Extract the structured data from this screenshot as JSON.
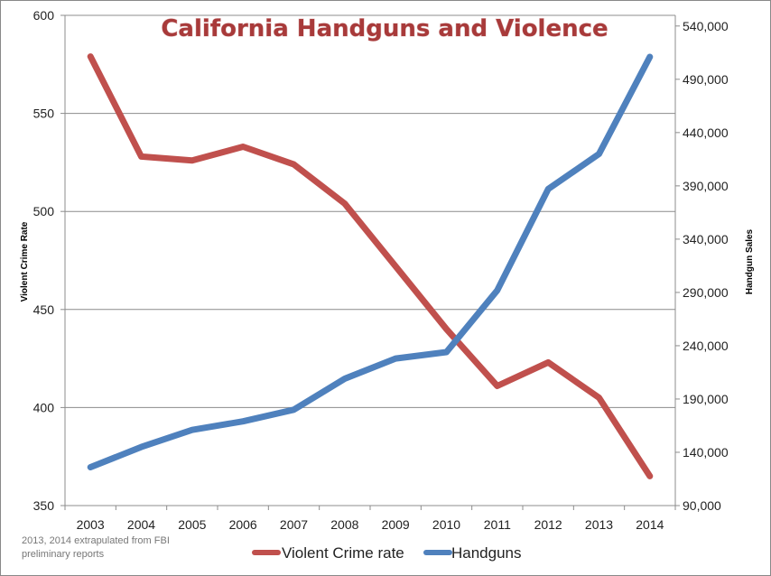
{
  "chart_data": {
    "type": "line",
    "title": "California Handguns and Violence",
    "ylabel": "Violent Crime Rate",
    "y2label": "Handgun Sales",
    "categories": [
      "2003",
      "2004",
      "2005",
      "2006",
      "2007",
      "2008",
      "2009",
      "2010",
      "2011",
      "2012",
      "2013",
      "2014"
    ],
    "ylim": [
      350,
      600
    ],
    "y2lim": [
      90000,
      550000
    ],
    "yticks": [
      "350",
      "400",
      "450",
      "500",
      "550",
      "600"
    ],
    "y2ticks": [
      "90,000",
      "140,000",
      "190,000",
      "240,000",
      "290,000",
      "340,000",
      "390,000",
      "440,000",
      "490,000",
      "540,000"
    ],
    "grid": true,
    "legend_position": "bottom",
    "series": [
      {
        "name": "Violent Crime rate",
        "axis": "left",
        "color": "#c0504d",
        "values": [
          579,
          528,
          526,
          533,
          524,
          504,
          472,
          440,
          411,
          423,
          405,
          365
        ]
      },
      {
        "name": "Handguns",
        "axis": "right",
        "color": "#4f81bd",
        "values": [
          126000,
          145000,
          161000,
          169000,
          180000,
          209000,
          228000,
          234000,
          292000,
          387000,
          420000,
          511000
        ]
      }
    ],
    "annotation": "2013, 2014 extrapulated from FBI preliminary reports",
    "annotation_lines": [
      "2013, 2014 extrapulated from FBI",
      "preliminary reports"
    ],
    "title_color": "#a83a3a"
  }
}
